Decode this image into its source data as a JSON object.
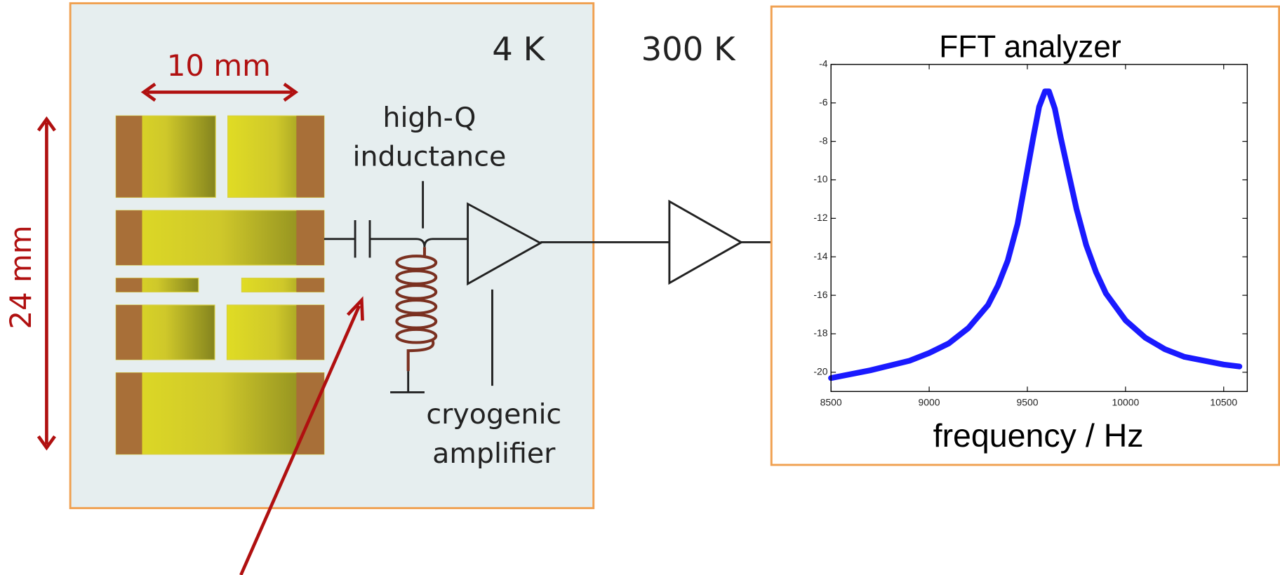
{
  "diagram": {
    "cold_stage_label": "4 K",
    "room_temp_label": "300 K",
    "width_label": "10 mm",
    "height_label": "24 mm",
    "inductance_label": [
      "high-Q",
      "inductance"
    ],
    "amplifier_label": [
      "cryogenic",
      "amplifier"
    ]
  },
  "chart_data": {
    "type": "line",
    "title": "FFT analyzer",
    "x_label": "frequency / Hz",
    "color": "#1a1aff",
    "x": [
      8500,
      8700,
      8900,
      9000,
      9100,
      9200,
      9300,
      9350,
      9400,
      9450,
      9500,
      9530,
      9560,
      9590,
      9610,
      9640,
      9670,
      9700,
      9750,
      9800,
      9850,
      9900,
      10000,
      10100,
      10200,
      10300,
      10400,
      10500,
      10580
    ],
    "values": [
      -20.3,
      -19.9,
      -19.4,
      -19.0,
      -18.5,
      -17.7,
      -16.5,
      -15.5,
      -14.2,
      -12.3,
      -9.5,
      -7.8,
      -6.2,
      -5.4,
      -5.4,
      -6.3,
      -7.8,
      -9.2,
      -11.5,
      -13.4,
      -14.8,
      -15.9,
      -17.3,
      -18.2,
      -18.8,
      -19.2,
      -19.4,
      -19.6,
      -19.7
    ],
    "xlim": [
      8500,
      10620
    ],
    "ylim": [
      -21,
      -4
    ],
    "xticks": [
      8500,
      9000,
      9500,
      10000,
      10500
    ],
    "yticks": [
      -4,
      -6,
      -8,
      -10,
      -12,
      -14,
      -16,
      -18,
      -20
    ]
  }
}
